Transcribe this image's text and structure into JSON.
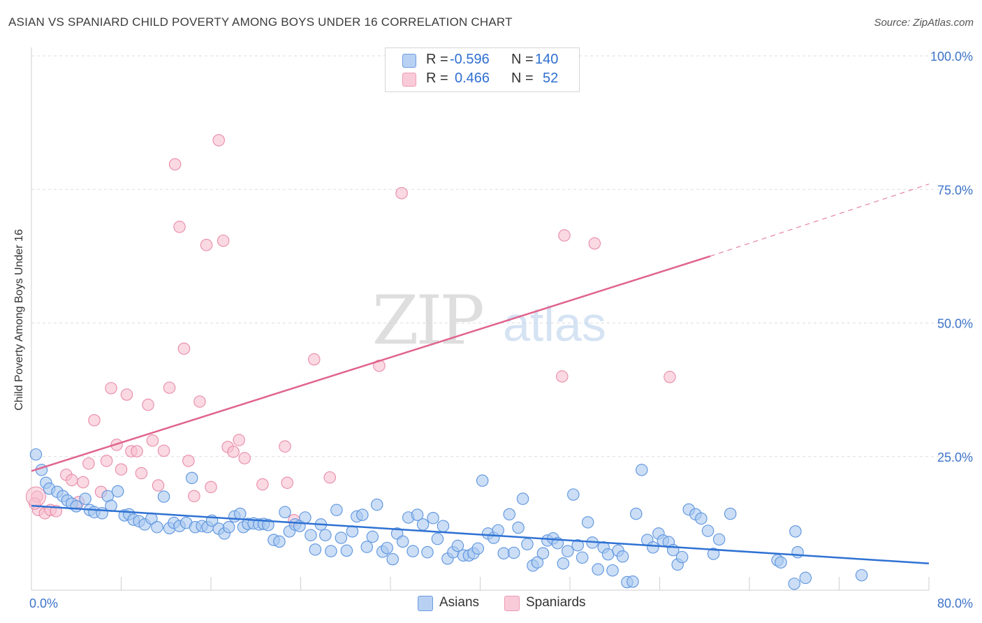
{
  "title": "ASIAN VS SPANIARD CHILD POVERTY AMONG BOYS UNDER 16 CORRELATION CHART",
  "source": "Source: ZipAtlas.com",
  "watermark": {
    "zip": "ZIP",
    "atlas": "atlas"
  },
  "colors": {
    "asians_fill": "#a9c8f0",
    "asians_stroke": "#5b93de",
    "asians_line": "#2f72d3",
    "spaniards_fill": "#f7bfd0",
    "spaniards_stroke": "#e88aa8",
    "spaniards_line": "#e0648e",
    "axis_label": "#3d74c9",
    "grid": "#dddddd"
  },
  "legend": {
    "rows": [
      {
        "r_label": "R =",
        "r_value": "-0.596",
        "n_label": "N =",
        "n_value": "140"
      },
      {
        "r_label": "R =",
        "r_value": "0.466",
        "n_label": "N =",
        "n_value": "52"
      }
    ]
  },
  "bottom_legend": {
    "asians": "Asians",
    "spaniards": "Spaniards"
  },
  "chart_data": {
    "type": "scatter",
    "title": "ASIAN VS SPANIARD CHILD POVERTY AMONG BOYS UNDER 16 CORRELATION CHART",
    "xlabel": "",
    "ylabel": "Child Poverty Among Boys Under 16",
    "xlim": [
      0,
      80
    ],
    "ylim": [
      0,
      100
    ],
    "x_tick_labels": [
      "0.0%",
      "80.0%"
    ],
    "y_tick_labels": [
      "25.0%",
      "50.0%",
      "75.0%",
      "100.0%"
    ],
    "y_ticks": [
      25,
      50,
      75,
      100
    ],
    "grid": true,
    "legend_position": "top-center",
    "series": [
      {
        "name": "Asians",
        "r": -0.596,
        "n": 140,
        "trend": {
          "x0": 0,
          "y0": 15.8,
          "x1": 80,
          "y1": 5.0
        },
        "points": [
          [
            0.4,
            25.4
          ],
          [
            0.9,
            22.5
          ],
          [
            1.3,
            20.1
          ],
          [
            1.6,
            19.0
          ],
          [
            2.3,
            18.4
          ],
          [
            2.8,
            17.6
          ],
          [
            3.2,
            16.8
          ],
          [
            3.6,
            16.2
          ],
          [
            4.0,
            15.7
          ],
          [
            4.8,
            17.1
          ],
          [
            5.2,
            15.0
          ],
          [
            5.6,
            14.6
          ],
          [
            6.3,
            14.4
          ],
          [
            6.8,
            17.6
          ],
          [
            7.1,
            15.8
          ],
          [
            7.7,
            18.5
          ],
          [
            8.3,
            14.0
          ],
          [
            8.7,
            14.2
          ],
          [
            9.1,
            13.2
          ],
          [
            9.6,
            12.9
          ],
          [
            10.1,
            12.3
          ],
          [
            10.7,
            13.4
          ],
          [
            11.2,
            11.8
          ],
          [
            11.8,
            17.5
          ],
          [
            12.3,
            11.6
          ],
          [
            12.7,
            12.6
          ],
          [
            13.2,
            12.0
          ],
          [
            13.8,
            12.6
          ],
          [
            14.3,
            21.0
          ],
          [
            14.6,
            11.8
          ],
          [
            15.2,
            12.0
          ],
          [
            15.7,
            11.8
          ],
          [
            16.1,
            13.0
          ],
          [
            16.7,
            11.5
          ],
          [
            17.2,
            10.6
          ],
          [
            17.6,
            11.8
          ],
          [
            18.1,
            13.8
          ],
          [
            18.6,
            14.3
          ],
          [
            18.9,
            11.8
          ],
          [
            19.3,
            12.4
          ],
          [
            19.8,
            12.5
          ],
          [
            20.3,
            12.3
          ],
          [
            20.7,
            12.4
          ],
          [
            21.1,
            12.2
          ],
          [
            21.6,
            9.4
          ],
          [
            22.1,
            9.1
          ],
          [
            22.6,
            14.6
          ],
          [
            23.0,
            11.0
          ],
          [
            23.5,
            12.3
          ],
          [
            23.9,
            12.0
          ],
          [
            24.4,
            13.6
          ],
          [
            24.9,
            10.3
          ],
          [
            25.3,
            7.6
          ],
          [
            25.8,
            12.3
          ],
          [
            26.2,
            10.3
          ],
          [
            26.7,
            7.3
          ],
          [
            27.2,
            15.0
          ],
          [
            27.6,
            9.8
          ],
          [
            28.1,
            7.4
          ],
          [
            28.6,
            11.0
          ],
          [
            29.0,
            13.8
          ],
          [
            29.5,
            14.1
          ],
          [
            29.9,
            8.1
          ],
          [
            30.4,
            10.0
          ],
          [
            30.8,
            16.0
          ],
          [
            31.3,
            7.2
          ],
          [
            31.7,
            7.9
          ],
          [
            32.2,
            5.8
          ],
          [
            32.6,
            10.6
          ],
          [
            33.1,
            9.1
          ],
          [
            33.6,
            13.6
          ],
          [
            34.0,
            7.3
          ],
          [
            34.4,
            14.1
          ],
          [
            34.9,
            12.3
          ],
          [
            35.3,
            7.1
          ],
          [
            35.8,
            13.5
          ],
          [
            36.2,
            9.6
          ],
          [
            36.7,
            12.0
          ],
          [
            37.1,
            5.9
          ],
          [
            37.6,
            7.1
          ],
          [
            38.0,
            8.3
          ],
          [
            38.5,
            6.5
          ],
          [
            39.0,
            6.5
          ],
          [
            39.4,
            6.9
          ],
          [
            39.8,
            7.8
          ],
          [
            40.2,
            20.5
          ],
          [
            40.7,
            10.6
          ],
          [
            41.2,
            9.8
          ],
          [
            41.6,
            11.2
          ],
          [
            42.1,
            6.9
          ],
          [
            42.6,
            14.2
          ],
          [
            43.0,
            7.0
          ],
          [
            43.4,
            11.7
          ],
          [
            43.8,
            17.1
          ],
          [
            44.2,
            8.6
          ],
          [
            44.7,
            4.6
          ],
          [
            45.1,
            5.2
          ],
          [
            45.6,
            6.9
          ],
          [
            46.0,
            9.3
          ],
          [
            46.5,
            9.7
          ],
          [
            46.9,
            8.8
          ],
          [
            47.4,
            5.0
          ],
          [
            47.8,
            7.3
          ],
          [
            48.3,
            17.9
          ],
          [
            48.7,
            8.4
          ],
          [
            49.1,
            6.1
          ],
          [
            49.6,
            12.7
          ],
          [
            50.0,
            8.9
          ],
          [
            50.5,
            3.9
          ],
          [
            51.0,
            8.0
          ],
          [
            51.4,
            6.7
          ],
          [
            51.8,
            3.7
          ],
          [
            52.3,
            7.4
          ],
          [
            52.7,
            6.3
          ],
          [
            53.1,
            1.5
          ],
          [
            53.6,
            1.6
          ],
          [
            53.9,
            14.3
          ],
          [
            54.4,
            22.5
          ],
          [
            54.9,
            9.4
          ],
          [
            55.4,
            8.0
          ],
          [
            55.9,
            10.6
          ],
          [
            56.3,
            9.3
          ],
          [
            56.8,
            9.0
          ],
          [
            57.2,
            7.5
          ],
          [
            57.6,
            4.8
          ],
          [
            58.0,
            6.2
          ],
          [
            58.6,
            15.1
          ],
          [
            59.2,
            14.2
          ],
          [
            59.7,
            13.4
          ],
          [
            60.3,
            11.1
          ],
          [
            60.8,
            6.8
          ],
          [
            61.3,
            9.5
          ],
          [
            62.3,
            14.3
          ],
          [
            66.5,
            5.6
          ],
          [
            66.8,
            5.2
          ],
          [
            68.1,
            11.0
          ],
          [
            68.3,
            7.1
          ],
          [
            68.0,
            1.2
          ],
          [
            69.0,
            2.3
          ],
          [
            74.0,
            2.8
          ]
        ]
      },
      {
        "name": "Spaniards",
        "r": 0.466,
        "n": 52,
        "trend": {
          "x0": 0,
          "y0": 22.3,
          "x1": 60.5,
          "y1": 62.5,
          "dash_to_x": 80,
          "dash_to_y": 76.0
        },
        "points": [
          [
            0.5,
            17.5
          ],
          [
            0.6,
            15.0
          ],
          [
            1.2,
            14.4
          ],
          [
            1.7,
            15.0
          ],
          [
            2.2,
            14.8
          ],
          [
            3.1,
            21.6
          ],
          [
            3.6,
            20.6
          ],
          [
            4.2,
            16.5
          ],
          [
            4.6,
            20.2
          ],
          [
            5.1,
            23.7
          ],
          [
            5.6,
            31.8
          ],
          [
            6.2,
            18.4
          ],
          [
            6.7,
            24.2
          ],
          [
            7.1,
            37.8
          ],
          [
            7.6,
            27.2
          ],
          [
            8.0,
            22.6
          ],
          [
            8.5,
            36.6
          ],
          [
            8.9,
            26.0
          ],
          [
            9.4,
            26.0
          ],
          [
            9.8,
            21.9
          ],
          [
            10.4,
            34.7
          ],
          [
            10.8,
            28.0
          ],
          [
            11.3,
            19.6
          ],
          [
            11.8,
            26.1
          ],
          [
            12.3,
            37.9
          ],
          [
            12.8,
            79.7
          ],
          [
            13.2,
            68.0
          ],
          [
            13.6,
            45.2
          ],
          [
            14.0,
            24.2
          ],
          [
            14.5,
            17.6
          ],
          [
            15.0,
            35.3
          ],
          [
            15.6,
            64.6
          ],
          [
            16.0,
            19.3
          ],
          [
            16.7,
            84.2
          ],
          [
            17.1,
            65.4
          ],
          [
            17.5,
            26.8
          ],
          [
            18.0,
            25.9
          ],
          [
            18.5,
            28.1
          ],
          [
            19.0,
            24.7
          ],
          [
            20.6,
            19.8
          ],
          [
            22.6,
            26.9
          ],
          [
            22.8,
            20.1
          ],
          [
            23.4,
            13.1
          ],
          [
            25.2,
            43.2
          ],
          [
            26.6,
            21.1
          ],
          [
            31.0,
            42.0
          ],
          [
            33.0,
            74.3
          ],
          [
            47.5,
            66.4
          ],
          [
            47.3,
            40.0
          ],
          [
            50.2,
            64.9
          ],
          [
            56.9,
            39.9
          ],
          [
            0.3,
            16.2
          ]
        ]
      }
    ]
  }
}
